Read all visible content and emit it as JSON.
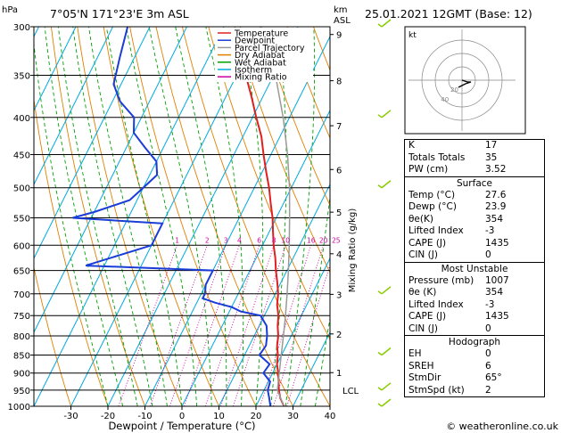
{
  "header": {
    "location": "7°05'N  171°23'E  3m  ASL",
    "datetime": "25.01.2021  12GMT  (Base: 12)",
    "hpa_label": "hPa",
    "km_label": "km",
    "asl_label": "ASL"
  },
  "axes": {
    "xlabel": "Dewpoint / Temperature (°C)",
    "x_ticks": [
      "-30",
      "-20",
      "-10",
      "0",
      "10",
      "20",
      "30",
      "40"
    ],
    "p_ticks": [
      "300",
      "350",
      "400",
      "450",
      "500",
      "550",
      "600",
      "650",
      "700",
      "750",
      "800",
      "850",
      "900",
      "950",
      "1000"
    ],
    "km_ticks": [
      "9",
      "8",
      "7",
      "6",
      "5",
      "4",
      "3",
      "2",
      "1"
    ],
    "lcl_label": "LCL",
    "mixing_ratio_label": "Mixing Ratio (g/kg)",
    "mixing_ratio_values": [
      "1",
      "2",
      "3",
      "4",
      "6",
      "8",
      "10",
      "16",
      "20",
      "25"
    ]
  },
  "legend": {
    "items": [
      {
        "label": "Temperature",
        "color": "#e02020"
      },
      {
        "label": "Dewpoint",
        "color": "#1a3cd8"
      },
      {
        "label": "Parcel Trajectory",
        "color": "#9a9a9a"
      },
      {
        "label": "Dry Adiabat",
        "color": "#e08000"
      },
      {
        "label": "Wet Adiabat",
        "color": "#00a000"
      },
      {
        "label": "Isotherm",
        "color": "#00aadd"
      },
      {
        "label": "Mixing Ratio",
        "color": "#d000a0"
      }
    ]
  },
  "hodograph": {
    "unit_label": "kt",
    "ring_labels": [
      "20",
      "40"
    ]
  },
  "indices": {
    "rows": [
      {
        "k": "K",
        "v": "17"
      },
      {
        "k": "Totals Totals",
        "v": "35"
      },
      {
        "k": "PW (cm)",
        "v": "3.52"
      }
    ]
  },
  "surface": {
    "title": "Surface",
    "rows": [
      {
        "k": "Temp (°C)",
        "v": "27.6"
      },
      {
        "k": "Dewp (°C)",
        "v": "23.9"
      },
      {
        "k": "θe(K)",
        "v": "354"
      },
      {
        "k": "Lifted Index",
        "v": "-3"
      },
      {
        "k": "CAPE (J)",
        "v": "1435"
      },
      {
        "k": "CIN (J)",
        "v": "0"
      }
    ]
  },
  "most_unstable": {
    "title": "Most Unstable",
    "rows": [
      {
        "k": "Pressure (mb)",
        "v": "1007"
      },
      {
        "k": "θe (K)",
        "v": "354"
      },
      {
        "k": "Lifted Index",
        "v": "-3"
      },
      {
        "k": "CAPE (J)",
        "v": "1435"
      },
      {
        "k": "CIN (J)",
        "v": "0"
      }
    ]
  },
  "hodograph_table": {
    "title": "Hodograph",
    "rows": [
      {
        "k": "EH",
        "v": "0"
      },
      {
        "k": "SREH",
        "v": "6"
      },
      {
        "k": "StmDir",
        "v": "65°"
      },
      {
        "k": "StmSpd (kt)",
        "v": "2"
      }
    ]
  },
  "footer": {
    "copyright": "© weatheronline.co.uk"
  },
  "colors": {
    "temperature": "#e02020",
    "dewpoint": "#1a3cd8",
    "parcel": "#9a9a9a",
    "dry": "#e08000",
    "wet": "#00a000",
    "isotherm": "#00aadd",
    "mixing": "#d000a0",
    "wind": "#88cc00"
  },
  "chart_data": {
    "type": "line",
    "title": "",
    "xlabel": "Dewpoint / Temperature (°C)",
    "ylabel": "hPa",
    "xlim": [
      -40,
      40
    ],
    "ylim": [
      1000,
      300
    ],
    "y_scale": "log",
    "skew": true,
    "series": [
      {
        "name": "Temperature",
        "pressure": [
          1000,
          975,
          950,
          925,
          900,
          875,
          850,
          825,
          800,
          775,
          750,
          725,
          700,
          675,
          650,
          625,
          600,
          575,
          550,
          525,
          500,
          475,
          450,
          425,
          400,
          375,
          350
        ],
        "values": [
          27.6,
          25.5,
          24.0,
          22.8,
          21.5,
          20.0,
          19.0,
          17.5,
          16.5,
          15.0,
          13.8,
          12.0,
          10.8,
          9.0,
          7.0,
          5.2,
          3.0,
          1.0,
          -1.0,
          -3.5,
          -6.0,
          -9.0,
          -12.0,
          -15.0,
          -19.0,
          -23.0,
          -27.5
        ]
      },
      {
        "name": "Dewpoint",
        "pressure": [
          1000,
          975,
          950,
          925,
          900,
          875,
          850,
          825,
          800,
          775,
          750,
          740,
          730,
          720,
          710,
          700,
          680,
          650,
          640,
          600,
          575,
          560,
          550,
          540,
          520,
          500,
          480,
          460,
          440,
          420,
          400,
          380,
          360,
          330,
          300
        ],
        "values": [
          23.9,
          22.5,
          21.0,
          20.5,
          17.5,
          18.0,
          14.0,
          14.5,
          13.5,
          12.0,
          9.0,
          3.0,
          0.0,
          -5.0,
          -9.0,
          -9.0,
          -10.0,
          -10.0,
          -45.0,
          -30.0,
          -30.0,
          -30.0,
          -55.0,
          -50.0,
          -42.0,
          -40.0,
          -38.0,
          -40.0,
          -45.0,
          -50.0,
          -52.0,
          -58.0,
          -62.0,
          -64.0,
          -66.0
        ]
      },
      {
        "name": "Parcel Trajectory",
        "pressure": [
          1000,
          950,
          900,
          850,
          800,
          750,
          700,
          650,
          600,
          550,
          500,
          450,
          400,
          350
        ],
        "values": [
          27.6,
          23.6,
          21.8,
          19.9,
          17.9,
          15.7,
          13.2,
          10.4,
          7.2,
          3.6,
          -0.5,
          -5.5,
          -11.7,
          -19.5
        ]
      }
    ],
    "wind_barbs": [
      {
        "pressure": 1000,
        "spd_kt": 5
      },
      {
        "pressure": 950,
        "spd_kt": 5
      },
      {
        "pressure": 850,
        "spd_kt": 10
      },
      {
        "pressure": 700,
        "spd_kt": 10
      },
      {
        "pressure": 500,
        "spd_kt": 15
      },
      {
        "pressure": 400,
        "spd_kt": 15
      },
      {
        "pressure": 300,
        "spd_kt": 10
      }
    ],
    "hodograph_points": [
      {
        "u": 0,
        "v": 0
      },
      {
        "u": 3,
        "v": -1
      },
      {
        "u": 5,
        "v": -1
      },
      {
        "u": 2,
        "v": -2
      },
      {
        "u": -2,
        "v": -4
      }
    ]
  }
}
